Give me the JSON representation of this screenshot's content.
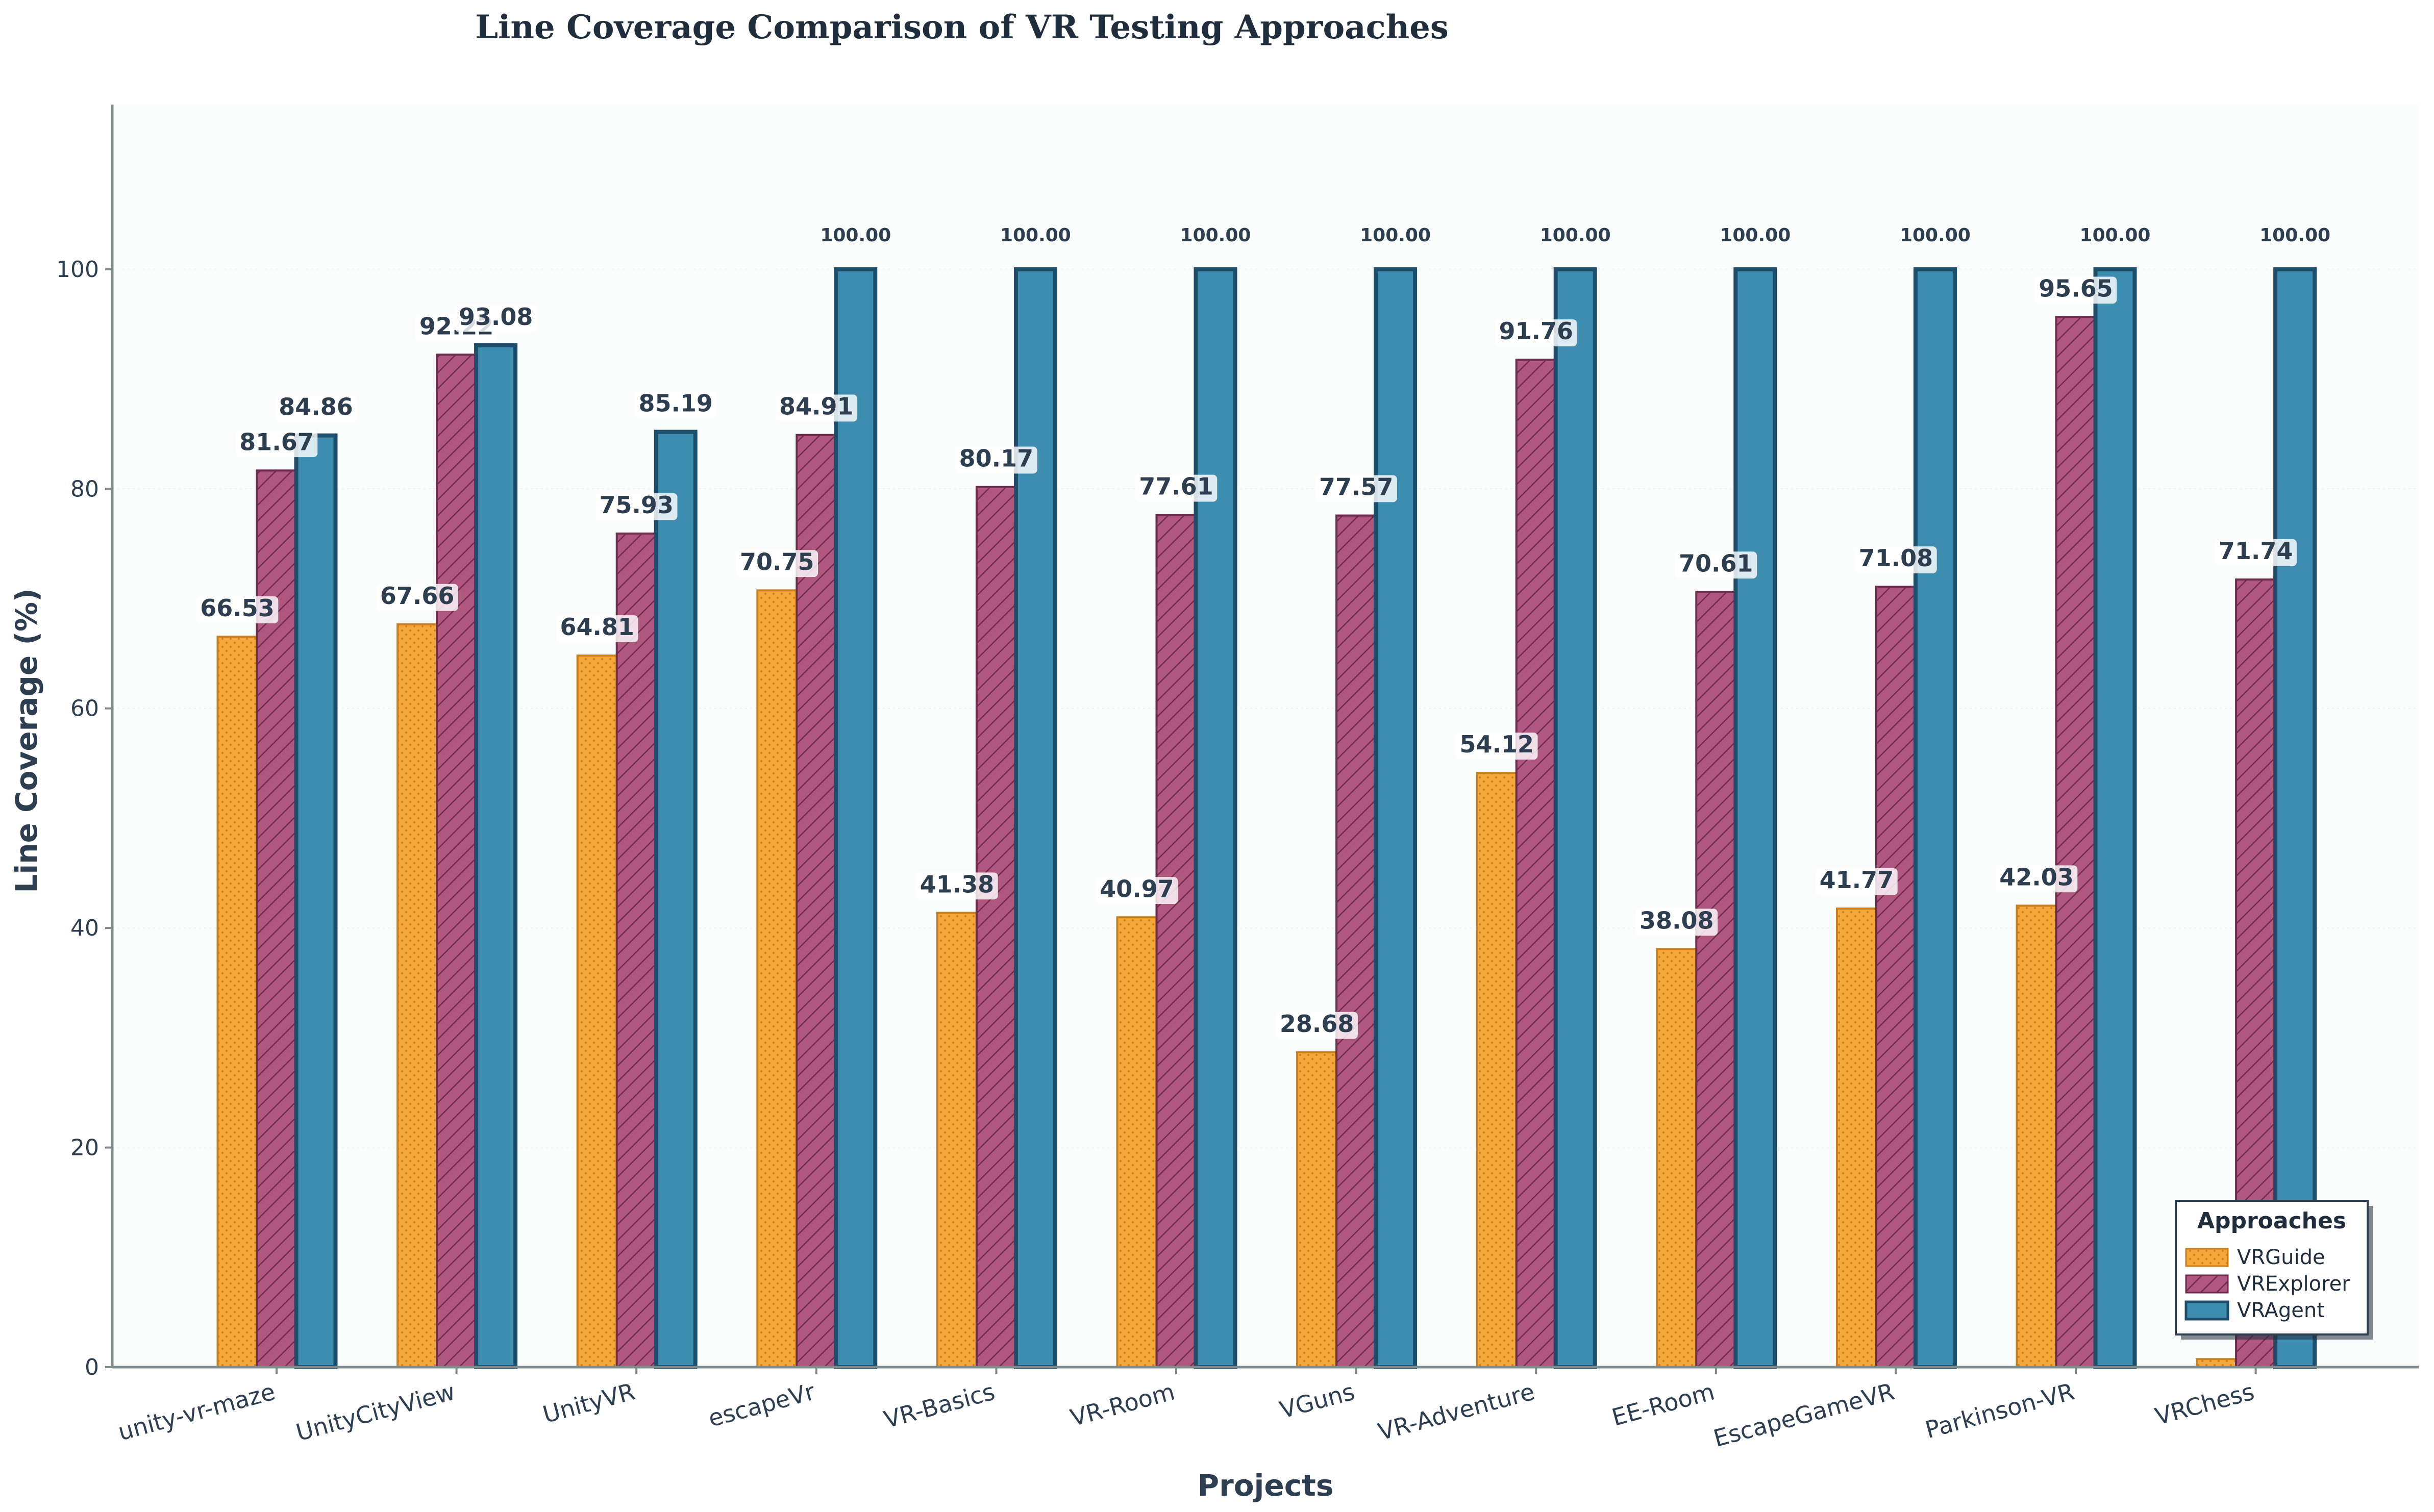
{
  "chart_data": {
    "type": "bar",
    "title": "Line Coverage Comparison of VR Testing Approaches",
    "xlabel": "Projects",
    "ylabel": "Line Coverage (%)",
    "ylim": [
      0,
      115
    ],
    "yticks": [
      0,
      20,
      40,
      60,
      80,
      100
    ],
    "grid": true,
    "legend_title": "Approaches",
    "legend_position": "lower-right",
    "categories": [
      "unity-vr-maze",
      "UnityCityView",
      "UnityVR",
      "escapeVr",
      "VR-Basics",
      "VR-Room",
      "VGuns",
      "VR-Adventure",
      "EE-Room",
      "EscapeGameVR",
      "Parkinson-VR",
      "VRChess"
    ],
    "series": [
      {
        "name": "VRGuide",
        "color": "#f5a83a",
        "edge": "#c9801c",
        "pattern": "dots",
        "values": [
          66.53,
          67.66,
          64.81,
          70.75,
          41.38,
          40.97,
          28.68,
          54.12,
          38.08,
          41.77,
          42.03,
          0.73
        ],
        "labels": [
          "66.53",
          "67.66",
          "64.81",
          "70.75",
          "41.38",
          "40.97",
          "28.68",
          "54.12",
          "38.08",
          "41.77",
          "42.03",
          ""
        ]
      },
      {
        "name": "VRExplorer",
        "color": "#b0577f",
        "edge": "#6e2c4f",
        "pattern": "hatch",
        "values": [
          81.67,
          92.22,
          75.93,
          84.91,
          80.17,
          77.61,
          77.57,
          91.76,
          70.61,
          71.08,
          95.65,
          71.74
        ],
        "labels": [
          "81.67",
          "92.22",
          "75.93",
          "84.91",
          "80.17",
          "77.61",
          "77.57",
          "91.76",
          "70.61",
          "71.08",
          "95.65",
          "71.74"
        ]
      },
      {
        "name": "VRAgent",
        "color": "#3d8db0",
        "edge": "#1d4e6b",
        "pattern": "none",
        "values": [
          84.86,
          93.08,
          85.19,
          100.0,
          100.0,
          100.0,
          100.0,
          100.0,
          100.0,
          100.0,
          100.0,
          100.0
        ],
        "labels": [
          "84.86",
          "93.08",
          "85.19",
          "100.00",
          "100.00",
          "100.00",
          "100.00",
          "100.00",
          "100.00",
          "100.00",
          "100.00",
          "100.00"
        ]
      }
    ]
  }
}
